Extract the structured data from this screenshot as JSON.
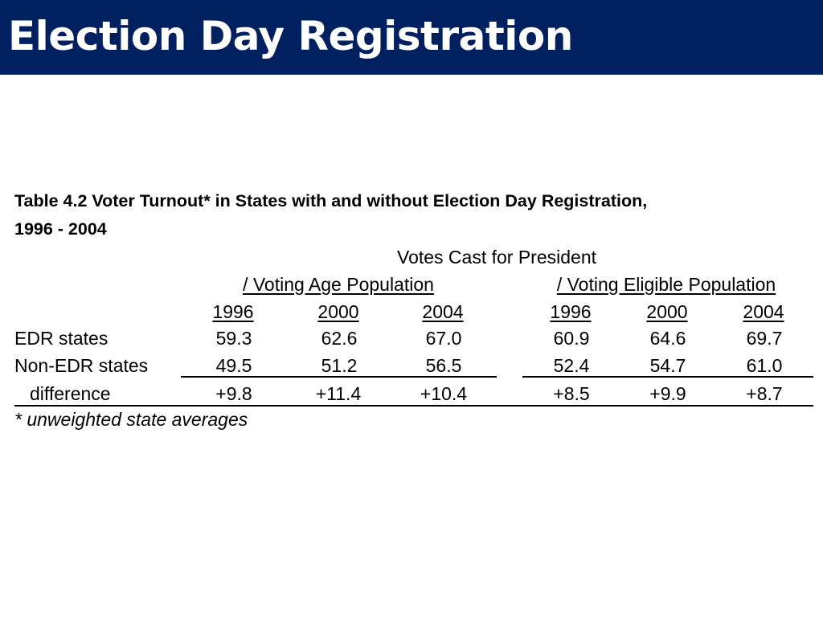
{
  "header": {
    "title": "Election Day Registration",
    "background_color": "#002060",
    "text_color": "#ffffff"
  },
  "table": {
    "caption_line1": "Table 4.2 Voter Turnout* in States with and without Election Day Registration,",
    "caption_line2": "1996 - 2004",
    "super_header": "Votes Cast for President",
    "group_headers": [
      "/ Voting Age Population",
      "/ Voting Eligible Population"
    ],
    "years": [
      "1996",
      "2000",
      "2004",
      "1996",
      "2000",
      "2004"
    ],
    "rows": [
      {
        "label": "EDR states",
        "values": [
          "59.3",
          "62.6",
          "67.0",
          "60.9",
          "64.6",
          "69.7"
        ]
      },
      {
        "label": "Non-EDR states",
        "values": [
          "49.5",
          "51.2",
          "56.5",
          "52.4",
          "54.7",
          "61.0"
        ]
      },
      {
        "label": "difference",
        "values": [
          "+9.8",
          "+11.4",
          "+10.4",
          "+8.5",
          "+9.9",
          "+8.7"
        ]
      }
    ],
    "footnote": "* unweighted state averages"
  }
}
